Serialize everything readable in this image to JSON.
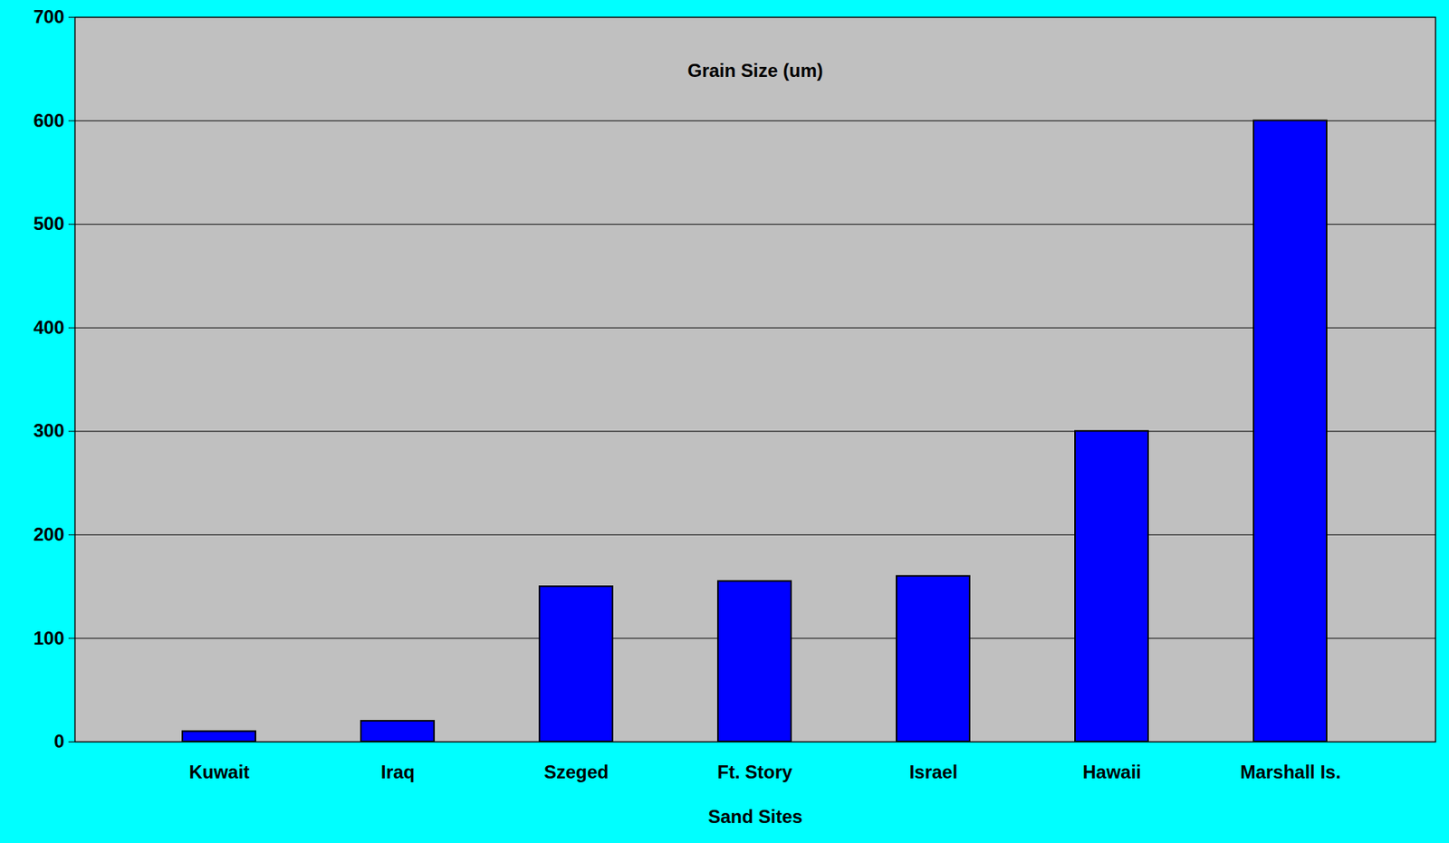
{
  "chart_data": {
    "type": "bar",
    "title": "Grain Size (um)",
    "xlabel": "Sand Sites",
    "categories": [
      "Kuwait",
      "Iraq",
      "Szeged",
      "Ft. Story",
      "Israel",
      "Hawaii",
      "Marshall Is."
    ],
    "values": [
      10,
      20,
      150,
      155,
      160,
      300,
      600
    ],
    "color": "#0000ff",
    "ylim": [
      0,
      700
    ],
    "yticks": [
      0,
      100,
      200,
      300,
      400,
      500,
      600,
      700
    ],
    "grid": true
  }
}
